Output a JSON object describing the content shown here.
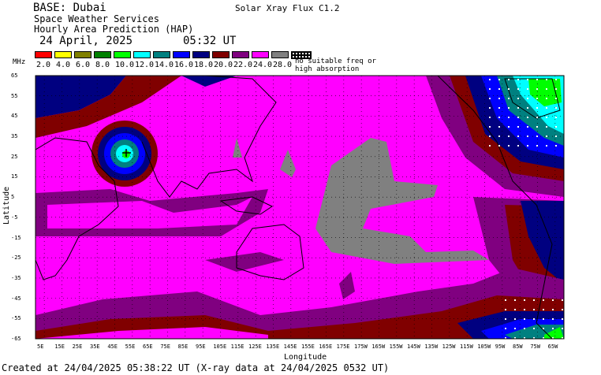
{
  "header": {
    "base": "BASE: Dubai",
    "service_line1": "Space Weather Services",
    "service_line2": "Hourly Area Prediction (HAP)",
    "date": "24 April, 2025",
    "time": "05:32 UT",
    "flux": "Solar Xray Flux C1.2"
  },
  "legend": {
    "unit": "MHz",
    "no_suitable_line1": "no suitable freq or",
    "no_suitable_line2": "high absorption",
    "items": [
      {
        "label": "2.0",
        "color": "#ff0000"
      },
      {
        "label": "4.0",
        "color": "#ffff00"
      },
      {
        "label": "6.0",
        "color": "#808000"
      },
      {
        "label": "8.0",
        "color": "#008000"
      },
      {
        "label": "10.0",
        "color": "#00ff00"
      },
      {
        "label": "12.0",
        "color": "#00ffff"
      },
      {
        "label": "14.0",
        "color": "#008080"
      },
      {
        "label": "16.0",
        "color": "#0000ff"
      },
      {
        "label": "18.0",
        "color": "#000080"
      },
      {
        "label": "20.0",
        "color": "#800000"
      },
      {
        "label": "22.0",
        "color": "#800080"
      },
      {
        "label": "24.0",
        "color": "#ff00ff"
      },
      {
        "label": "28.0",
        "color": "#808080"
      }
    ]
  },
  "map": {
    "xlabel": "Longitude",
    "ylabel": "Latitude",
    "lon_ticks": [
      "5E",
      "15E",
      "25E",
      "35E",
      "45E",
      "55E",
      "65E",
      "75E",
      "85E",
      "95E",
      "105E",
      "115E",
      "125E",
      "135E",
      "145E",
      "155E",
      "165E",
      "175E",
      "175W",
      "165W",
      "155W",
      "145W",
      "135W",
      "125W",
      "115W",
      "105W",
      "95W",
      "85W",
      "75W",
      "65W"
    ],
    "lat_ticks": [
      "65",
      "55",
      "45",
      "35",
      "25",
      "15",
      "5",
      "-5",
      "-15",
      "-25",
      "-35",
      "-45",
      "-55",
      "-65"
    ],
    "station": "Dubai"
  },
  "footer": {
    "created": "Created at 24/04/2025 05:38:22 UT (X-ray data at 24/04/2025 0532 UT)"
  }
}
